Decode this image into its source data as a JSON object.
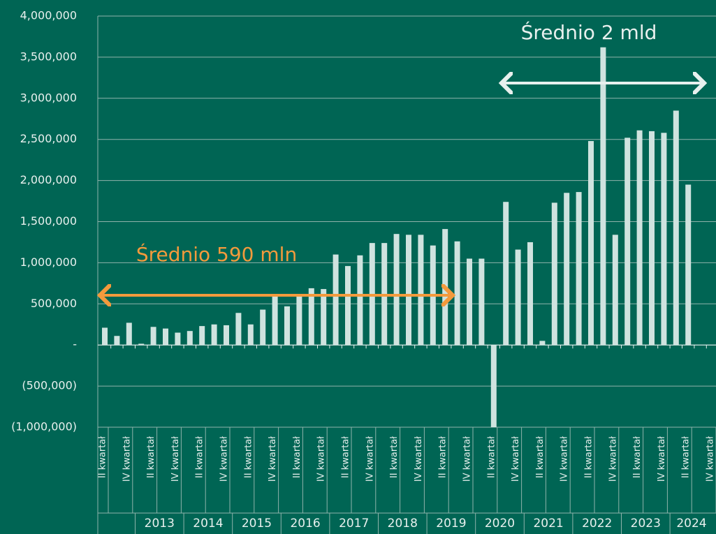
{
  "chart_data": {
    "type": "bar",
    "categories": [
      "II kwartał",
      null,
      "IV kwartał",
      null,
      "II kwartał",
      null,
      "IV kwartał",
      null,
      "II kwartał",
      null,
      "IV kwartał",
      null,
      "II kwartał",
      null,
      "IV kwartał",
      null,
      "II kwartał",
      null,
      "IV kwartał",
      null,
      "II kwartał",
      null,
      "IV kwartał",
      null,
      "II kwartał",
      null,
      "IV kwartał",
      null,
      "II kwartał",
      null,
      "IV kwartał",
      null,
      "II kwartał",
      null,
      "IV kwartał",
      null,
      "II kwartał",
      null,
      "IV kwartał",
      null,
      "II kwartał",
      null,
      "IV kwartał",
      null,
      "II kwartał",
      null,
      "IV kwartał",
      null,
      "II kwartał",
      null,
      "IV kwartał"
    ],
    "values": [
      210000,
      110000,
      270000,
      15000,
      220000,
      200000,
      150000,
      170000,
      230000,
      250000,
      240000,
      390000,
      250000,
      430000,
      600000,
      470000,
      610000,
      690000,
      680000,
      1100000,
      960000,
      1090000,
      1240000,
      1240000,
      1350000,
      1340000,
      1340000,
      1210000,
      1410000,
      1260000,
      1050000,
      1050000,
      -1000000,
      1740000,
      1160000,
      1250000,
      50000,
      1730000,
      1850000,
      1860000,
      2480000,
      3620000,
      1340000,
      2520000,
      2610000,
      2600000,
      2580000,
      2850000,
      1950000,
      null,
      null
    ],
    "years": [
      "2013",
      "2014",
      "2015",
      "2016",
      "2017",
      "2018",
      "2019",
      "2020",
      "2021",
      "2022",
      "2023",
      "2024"
    ],
    "color": "#cfe3df",
    "ylim": [
      -1000000,
      4000000
    ],
    "yticks": [
      {
        "value": -1000000,
        "label": "(1,000,000)"
      },
      {
        "value": -500000,
        "label": "(500,000)"
      },
      {
        "value": 0,
        "label": "-"
      },
      {
        "value": 500000,
        "label": "500,000"
      },
      {
        "value": 1000000,
        "label": "1,000,000"
      },
      {
        "value": 1500000,
        "label": "1,500,000"
      },
      {
        "value": 2000000,
        "label": "2,000,000"
      },
      {
        "value": 2500000,
        "label": "2,500,000"
      },
      {
        "value": 3000000,
        "label": "3,000,000"
      },
      {
        "value": 3500000,
        "label": "3,500,000"
      },
      {
        "value": 4000000,
        "label": "4,000,000"
      }
    ],
    "grid": true,
    "annotations": [
      "Średnio 590 mln",
      "Średnio 2 mld"
    ]
  }
}
